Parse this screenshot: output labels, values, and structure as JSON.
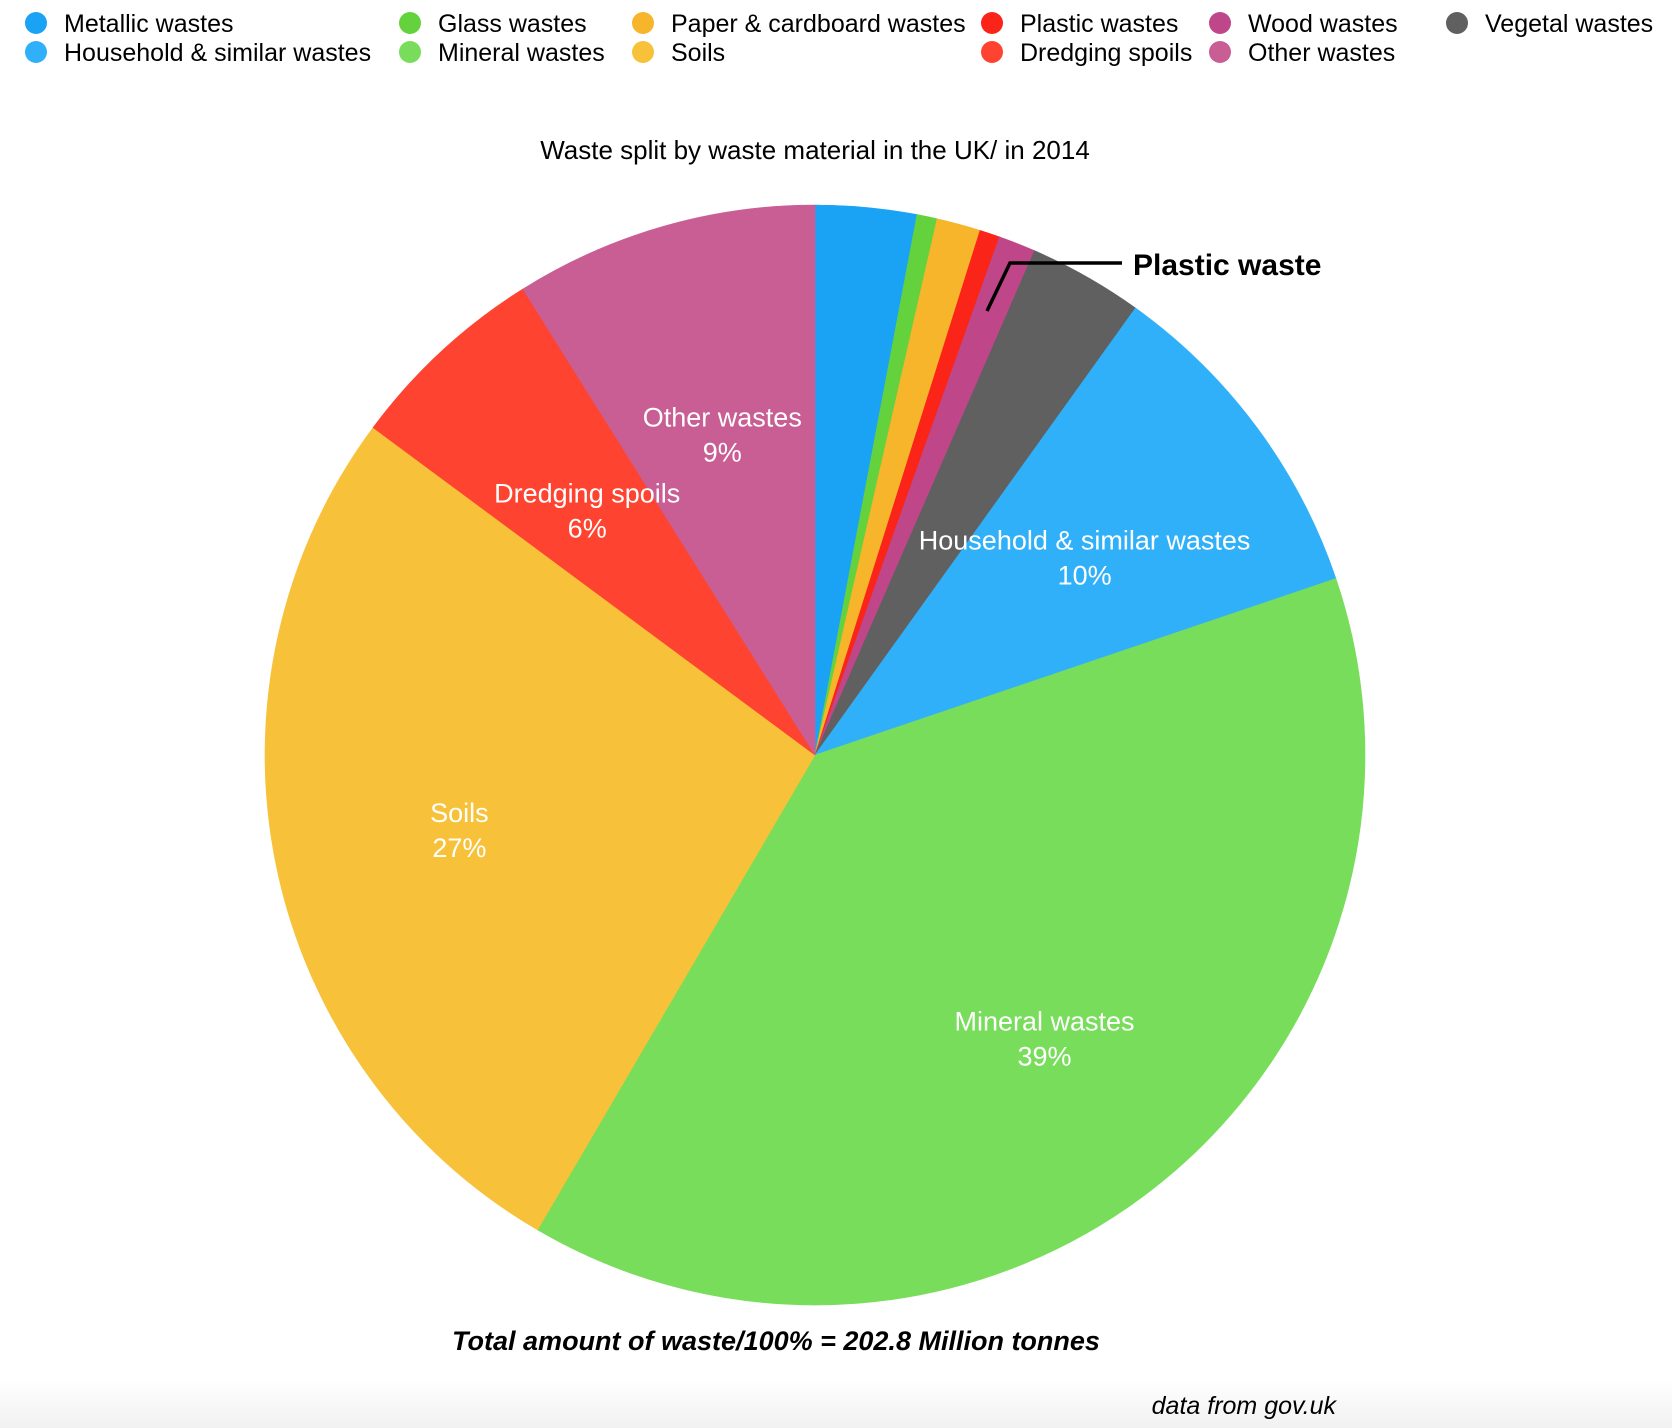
{
  "chart_data": {
    "type": "pie",
    "title": "Waste split by waste material in the UK/ in 2014",
    "legend_position": "top",
    "slices": [
      {
        "name": "Metallic wastes",
        "value": 3.0,
        "color": "#1aa3f5"
      },
      {
        "name": "Glass wastes",
        "value": 0.6,
        "color": "#63d23d"
      },
      {
        "name": "Paper & cardboard wastes",
        "value": 1.3,
        "color": "#f7b52b"
      },
      {
        "name": "Plastic wastes",
        "value": 0.6,
        "color": "#fb2418"
      },
      {
        "name": "Wood wastes",
        "value": 1.1,
        "color": "#c0468a"
      },
      {
        "name": "Vegetal wastes",
        "value": 3.4,
        "color": "#606060"
      },
      {
        "name": "Household & similar wastes",
        "value": 10,
        "color": "#31b0fa",
        "label_pct": "10%"
      },
      {
        "name": "Mineral wastes",
        "value": 39,
        "color": "#78dd5a",
        "label_pct": "39%"
      },
      {
        "name": "Soils",
        "value": 27,
        "color": "#f7c23a",
        "label_pct": "27%"
      },
      {
        "name": "Dredging spoils",
        "value": 6,
        "color": "#fe4430",
        "label_pct": "6%"
      },
      {
        "name": "Other wastes",
        "value": 9,
        "color": "#c85e93",
        "label_pct": "9%"
      }
    ],
    "legend_columns": [
      [
        "Metallic wastes",
        "Household & similar wastes"
      ],
      [
        "Glass wastes",
        "Mineral wastes"
      ],
      [
        "Paper & cardboard wastes",
        "Soils"
      ],
      [
        "Plastic wastes",
        "Dredging spoils"
      ],
      [
        "Wood wastes",
        "Other wastes"
      ],
      [
        "Vegetal wastes"
      ]
    ],
    "annotation": "Plastic waste",
    "annotation_target": "Plastic wastes",
    "total_note": "Total amount of waste/100% = 202.8 Million tonnes",
    "source": "data from gov.uk"
  }
}
